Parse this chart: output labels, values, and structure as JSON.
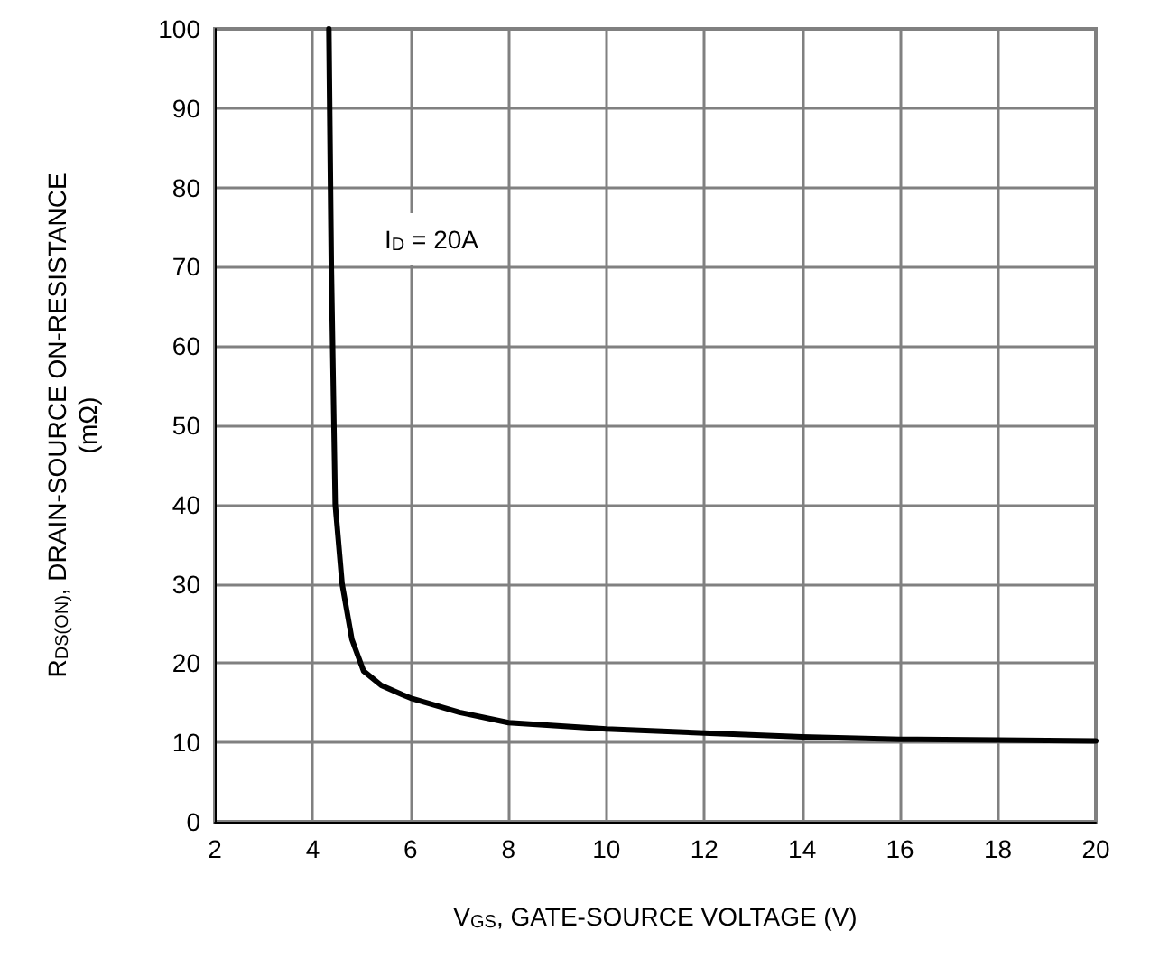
{
  "chart_data": {
    "type": "line",
    "xlabel": "V$_{GS}$, GATE-SOURCE VOLTAGE (V)",
    "ylabel": "R$_{DS(ON)}$, DRAIN-SOURCE ON-RESISTANCE\n(mΩ)",
    "annotations": [
      "I$_{D}$ = 20A"
    ],
    "series": [
      {
        "color": "#000000",
        "x": [
          4.33,
          4.38,
          4.46,
          4.6,
          4.8,
          5.04,
          5.4,
          5.84,
          6,
          7,
          8,
          10,
          12,
          14,
          16,
          18,
          20
        ],
        "values": [
          100,
          70,
          40,
          30,
          23,
          19,
          17.2,
          16,
          15.6,
          13.8,
          12.5,
          11.7,
          11.2,
          10.7,
          10.4,
          10.3,
          10.2
        ]
      }
    ],
    "xlim": [
      2,
      20
    ],
    "xticks": [
      2,
      4,
      6,
      8,
      10,
      12,
      14,
      16,
      18,
      20
    ],
    "ylim": [
      0,
      100
    ],
    "yticks": [
      0,
      10,
      20,
      30,
      40,
      50,
      60,
      70,
      80,
      90,
      100
    ],
    "grid": true,
    "marker": "none",
    "line_style": "solid"
  }
}
